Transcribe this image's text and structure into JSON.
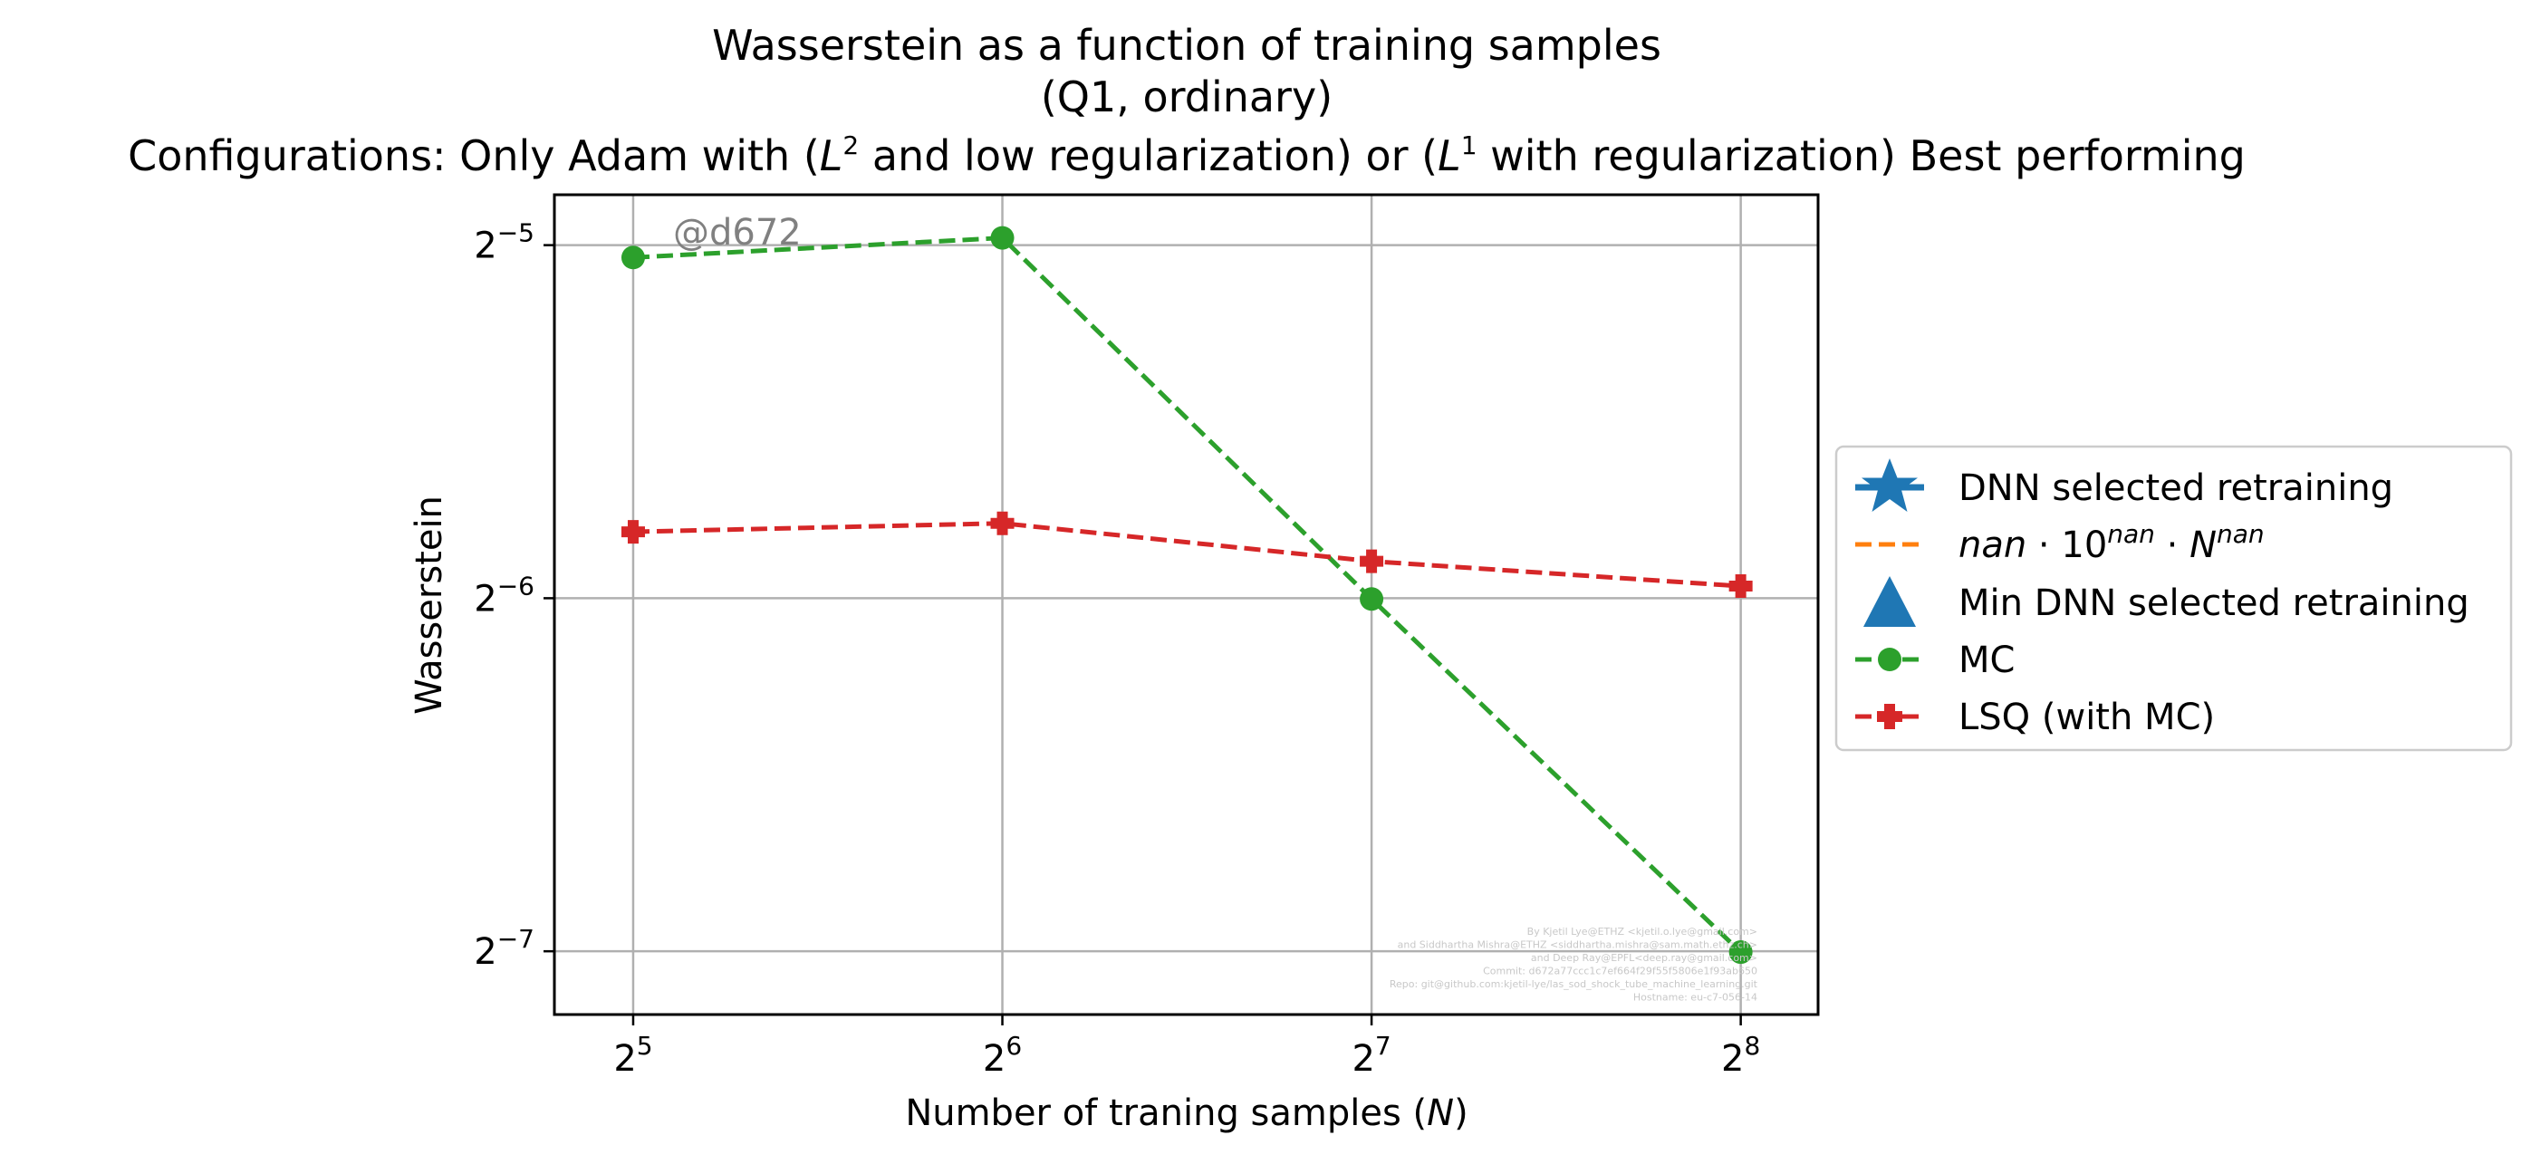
{
  "title": {
    "line1": "Wasserstein as a function of training samples",
    "line2": "(Q1, ordinary)",
    "line3_prefix": "Configurations: Only Adam with (",
    "line3_l2": "L",
    "line3_l2_sup": "2",
    "line3_mid": " and low regularization) or (",
    "line3_l1": "L",
    "line3_l1_sup": "1",
    "line3_suffix": " with regularization) Best performing"
  },
  "watermark": {
    "tag": "@d672",
    "lines": [
      "By Kjetil Lye@ETHZ <kjetil.o.lye@gmail.com>",
      "and Siddhartha Mishra@ETHZ <siddhartha.mishra@sam.math.ethz.ch>",
      "and Deep Ray@EPFL<deep.ray@gmail.com>",
      "Commit: d672a77ccc1c7ef664f29f55f5806e1f93ab650",
      "Repo: git@github.com:kjetil-lye/las_sod_shock_tube_machine_learning.git",
      "Hostname: eu-c7-056-14"
    ]
  },
  "colors": {
    "dnn": "#1f77b4",
    "fit": "#ff7f0e",
    "mc": "#2ca02c",
    "lsq": "#d62728",
    "grid": "#b0b0b0"
  },
  "legend": {
    "placement": "right-center outside",
    "items": [
      {
        "label": "DNN selected retraining",
        "marker": "star",
        "color": "#1f77b4"
      },
      {
        "label": "nan·10^nan·N^nan",
        "marker": "dashed-line",
        "color": "#ff7f0e",
        "math": {
          "a": "nan",
          "op1": " · 10",
          "e1": "nan",
          "op2": " · ",
          "n": "N",
          "e2": "nan"
        }
      },
      {
        "label": "Min DNN selected retraining",
        "marker": "triangle",
        "color": "#1f77b4"
      },
      {
        "label": "MC",
        "marker": "circle",
        "color": "#2ca02c"
      },
      {
        "label": "LSQ (with MC)",
        "marker": "plus",
        "color": "#d62728"
      }
    ]
  },
  "chart_data": {
    "type": "line",
    "xlabel_prefix": "Number of traning samples (",
    "xlabel_var": "N",
    "xlabel_suffix": ")",
    "ylabel": "Wasserstein",
    "x_scale": "log2",
    "y_scale": "log2",
    "xlim": [
      27.6,
      296
    ],
    "ylim": [
      0.0069,
      0.0345
    ],
    "x_ticks": [
      {
        "value": 32,
        "base": "2",
        "exp": "5"
      },
      {
        "value": 64,
        "base": "2",
        "exp": "6"
      },
      {
        "value": 128,
        "base": "2",
        "exp": "7"
      },
      {
        "value": 256,
        "base": "2",
        "exp": "8"
      }
    ],
    "y_ticks": [
      {
        "value": 0.03125,
        "base": "2",
        "exp": "−5"
      },
      {
        "value": 0.015625,
        "base": "2",
        "exp": "−6"
      },
      {
        "value": 0.0078125,
        "base": "2",
        "exp": "−7"
      }
    ],
    "grid": true,
    "series": [
      {
        "name": "MC",
        "color": "#2ca02c",
        "marker": "circle",
        "linestyle": "dashed",
        "x": [
          32,
          64,
          128,
          256
        ],
        "y": [
          0.0305,
          0.0317,
          0.0156,
          0.0078
        ]
      },
      {
        "name": "LSQ (with MC)",
        "color": "#d62728",
        "marker": "plus",
        "linestyle": "dashed",
        "x": [
          32,
          64,
          128,
          256
        ],
        "y": [
          0.0178,
          0.0181,
          0.0168,
          0.016
        ]
      }
    ]
  }
}
